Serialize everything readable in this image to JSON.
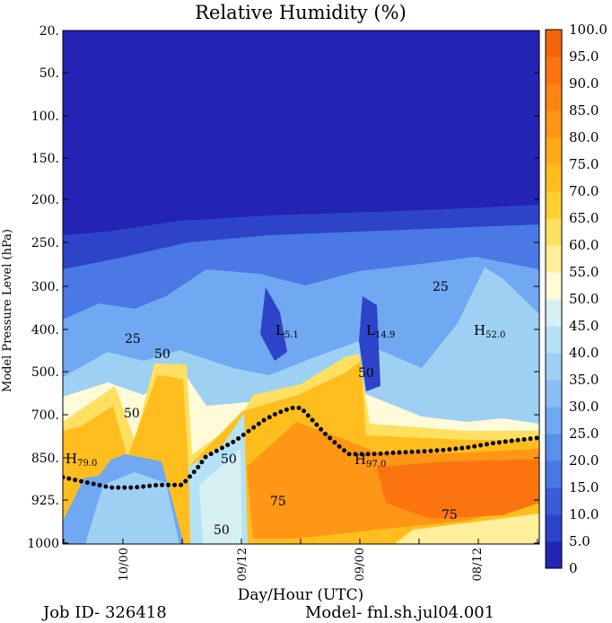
{
  "chart_data": {
    "type": "heatmap",
    "title": "Relative Humidity (%)",
    "xlabel": "Day/Hour (UTC)",
    "ylabel": "Model Pressure Level (hPa)",
    "x_ticks": [
      "10/00",
      "09/12",
      "09/00",
      "08/12"
    ],
    "y_ticks": [
      "20.",
      "50.",
      "100.",
      "150.",
      "200.",
      "250.",
      "300.",
      "400.",
      "500.",
      "700.",
      "850.",
      "925.",
      "1000"
    ],
    "colorbar": {
      "labels": [
        "0",
        "5.0",
        "10.0",
        "15.0",
        "20.0",
        "25.0",
        "30.0",
        "35.0",
        "40.0",
        "45.0",
        "50.0",
        "55.0",
        "60.0",
        "65.0",
        "70.0",
        "75.0",
        "80.0",
        "85.0",
        "90.0",
        "95.0",
        "100.0"
      ],
      "colors": [
        "#2424b4",
        "#2e44c8",
        "#3a5cd8",
        "#4a78e4",
        "#5a90ec",
        "#70a8f2",
        "#88bef4",
        "#9ed0f4",
        "#b4e2f4",
        "#d4f0f2",
        "#fffad8",
        "#ffee9a",
        "#ffe060",
        "#ffd030",
        "#ffbe1e",
        "#ffaa1a",
        "#ff9616",
        "#ff8412",
        "#fc7410",
        "#f4640c"
      ]
    },
    "contour_labels": [
      {
        "text": "25"
      },
      {
        "text": "50"
      },
      {
        "text": "50"
      },
      {
        "text": "50"
      },
      {
        "text": "50"
      },
      {
        "text": "75"
      },
      {
        "text": "50"
      },
      {
        "text": "75"
      },
      {
        "text": "25"
      }
    ],
    "extrema": [
      {
        "letter": "H",
        "value": "79.0"
      },
      {
        "letter": "L",
        "value": "5.1"
      },
      {
        "letter": "L",
        "value": "14.9"
      },
      {
        "letter": "H",
        "value": "52.0"
      },
      {
        "letter": "H",
        "value": "97.0"
      }
    ],
    "surface_pressure_line": {
      "style": "dotted",
      "x_fraction": [
        0.0,
        0.05,
        0.1,
        0.15,
        0.2,
        0.25,
        0.26,
        0.28,
        0.3,
        0.33,
        0.36,
        0.39,
        0.42,
        0.45,
        0.48,
        0.5,
        0.52,
        0.55,
        0.58,
        0.6,
        0.65,
        0.7,
        0.75,
        0.8,
        0.85,
        0.9,
        0.95,
        1.0
      ],
      "y_fraction": [
        0.87,
        0.88,
        0.89,
        0.89,
        0.885,
        0.885,
        0.875,
        0.855,
        0.83,
        0.815,
        0.8,
        0.78,
        0.76,
        0.745,
        0.735,
        0.735,
        0.755,
        0.785,
        0.81,
        0.825,
        0.825,
        0.822,
        0.82,
        0.817,
        0.812,
        0.804,
        0.798,
        0.793
      ]
    }
  },
  "footer": {
    "job_id": "Job ID- 326418",
    "model": "Model- fnl.sh.jul04.001"
  }
}
